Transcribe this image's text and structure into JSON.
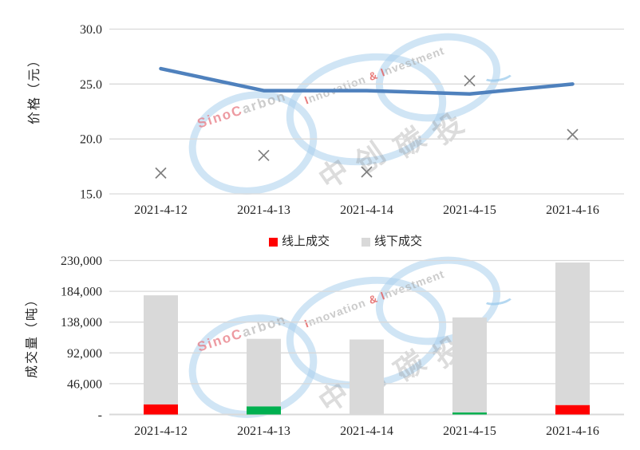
{
  "watermark": {
    "brand_en_1_parts": [
      "SinoC",
      "arbon"
    ],
    "brand_en_2_parts": [
      "I",
      "nnovation ",
      "&",
      " ",
      "I",
      "nvestment"
    ],
    "brand_cn_chars": [
      "中",
      "创",
      "碳",
      "投"
    ],
    "ring_color": "#aacfec"
  },
  "legend": {
    "items": [
      {
        "label": "线上成交",
        "color": "#FF0000"
      },
      {
        "label": "线下成交",
        "color": "#D9D9D9"
      }
    ]
  },
  "chart_data": [
    {
      "type": "line",
      "title": "",
      "xlabel": "",
      "ylabel": "价格（元）",
      "categories": [
        "2021-4-12",
        "2021-4-13",
        "2021-4-14",
        "2021-4-15",
        "2021-4-16"
      ],
      "series": [
        {
          "name": "price-line",
          "type": "line",
          "color": "#4F81BD",
          "values": [
            26.4,
            24.4,
            24.4,
            24.1,
            25.0
          ]
        },
        {
          "name": "price-markers",
          "type": "scatter",
          "marker": "x",
          "color": "#7F7F7F",
          "values": [
            16.9,
            18.5,
            17.0,
            25.3,
            20.4
          ]
        }
      ],
      "ylim": [
        15,
        30
      ],
      "yticks": [
        30,
        25,
        20,
        15
      ],
      "ytick_labels": [
        "30.0",
        "25.0",
        "20.0",
        "15.0"
      ],
      "grid": true,
      "legend_position": "none"
    },
    {
      "type": "bar",
      "stacked": true,
      "title": "",
      "xlabel": "",
      "ylabel": "成交量（吨）",
      "categories": [
        "2021-4-12",
        "2021-4-13",
        "2021-4-14",
        "2021-4-15",
        "2021-4-16"
      ],
      "series": [
        {
          "name": "线上成交",
          "values": [
            15000,
            12000,
            0,
            3000,
            14000
          ],
          "segment_colors": [
            "#FF0000",
            "#00B050",
            "#D9D9D9",
            "#00B050",
            "#FF0000"
          ],
          "color": "#FF0000"
        },
        {
          "name": "线下成交",
          "values": [
            163000,
            101000,
            112000,
            142000,
            213000
          ],
          "color": "#D9D9D9"
        }
      ],
      "ylim": [
        0,
        230000
      ],
      "yticks": [
        230000,
        184000,
        138000,
        92000,
        46000,
        0
      ],
      "ytick_labels": [
        "230,000",
        "184,000",
        "138,000",
        "92,000",
        "46,000",
        "-"
      ],
      "grid": true,
      "legend_position": "top-center"
    }
  ]
}
